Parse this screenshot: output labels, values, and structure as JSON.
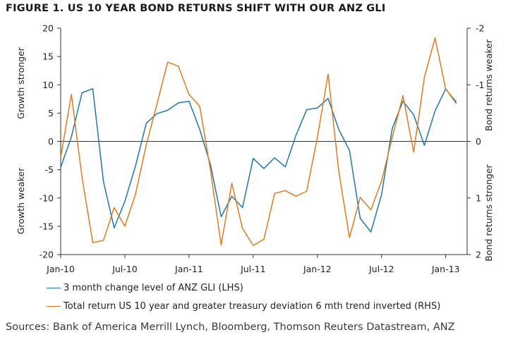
{
  "title": "FIGURE 1. US 10 YEAR BOND RETURNS SHIFT WITH OUR ANZ GLI",
  "source": "Sources: Bank of America Merrill Lynch, Bloomberg, Thomson Reuters Datastream, ANZ",
  "chart_data": {
    "type": "line",
    "title": "FIGURE 1. US 10 YEAR BOND RETURNS SHIFT WITH OUR ANZ GLI",
    "x_ticks": [
      "Jan-10",
      "Jul-10",
      "Jan-11",
      "Jul-11",
      "Jan-12",
      "Jul-12",
      "Jan-13"
    ],
    "x": [
      "2010-01",
      "2010-02",
      "2010-03",
      "2010-04",
      "2010-05",
      "2010-06",
      "2010-07",
      "2010-08",
      "2010-09",
      "2010-10",
      "2010-11",
      "2010-12",
      "2011-01",
      "2011-02",
      "2011-03",
      "2011-04",
      "2011-05",
      "2011-06",
      "2011-07",
      "2011-08",
      "2011-09",
      "2011-10",
      "2011-11",
      "2011-12",
      "2012-01",
      "2012-02",
      "2012-03",
      "2012-04",
      "2012-05",
      "2012-06",
      "2012-07",
      "2012-08",
      "2012-09",
      "2012-10",
      "2012-11",
      "2012-12",
      "2013-01",
      "2013-02",
      "2013-03"
    ],
    "left_axis": {
      "ylim": [
        -20,
        20
      ],
      "ticks": [
        "20",
        "15",
        "10",
        "5",
        "0",
        "-5",
        "-10",
        "-15",
        "-20"
      ],
      "label_top": "Growth stronger",
      "label_bottom": "Growth weaker"
    },
    "right_axis": {
      "ylim": [
        2,
        -2
      ],
      "inverted": true,
      "ticks": [
        "-2",
        "-1",
        "0",
        "1",
        "2"
      ],
      "label_top": "Bond returns weaker",
      "label_bottom": "Bond returns stronger"
    },
    "series": [
      {
        "name": "3 month change level of ANZ GLI (LHS)",
        "axis": "left",
        "color": "#1f77a8",
        "values": [
          -4.6,
          0.8,
          8.6,
          9.3,
          -7.1,
          -15.3,
          -10.6,
          -4.3,
          3.2,
          4.9,
          5.5,
          6.8,
          7.1,
          2.1,
          -4.1,
          -13.3,
          -9.7,
          -11.7,
          -3.0,
          -4.8,
          -2.9,
          -4.5,
          1.1,
          5.6,
          5.9,
          7.6,
          2.1,
          -1.6,
          -13.6,
          -16.0,
          -9.4,
          2.3,
          7.1,
          4.7,
          -0.7,
          5.4,
          9.3,
          6.7,
          null
        ]
      },
      {
        "name": "Total return US 10 year and greater treasury deviation 6 mth trend inverted (RHS)",
        "axis": "right",
        "color": "#e07a1f",
        "values": [
          0.28,
          -0.83,
          0.64,
          1.79,
          1.75,
          1.17,
          1.5,
          0.93,
          0.06,
          -0.66,
          -1.4,
          -1.33,
          -0.83,
          -0.62,
          0.5,
          1.83,
          0.74,
          1.54,
          1.84,
          1.73,
          0.92,
          0.87,
          0.97,
          0.88,
          -0.07,
          -1.19,
          0.53,
          1.7,
          0.99,
          1.21,
          0.7,
          -0.07,
          -0.81,
          0.19,
          -1.13,
          -1.83,
          -0.92,
          -0.7,
          null
        ]
      }
    ],
    "grid": false,
    "legend_position": "bottom-left"
  }
}
